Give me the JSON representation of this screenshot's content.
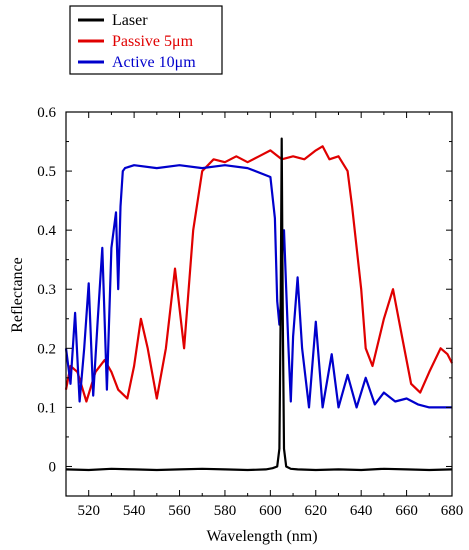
{
  "chart_data": {
    "type": "line",
    "title": "",
    "xlabel": "Wavelength (nm)",
    "ylabel": "Reflectance",
    "xlim": [
      510,
      680
    ],
    "ylim": [
      -0.05,
      0.6
    ],
    "xticks": [
      520,
      540,
      560,
      580,
      600,
      620,
      640,
      660,
      680
    ],
    "yticks": [
      0,
      0.1,
      0.2,
      0.3,
      0.4,
      0.5,
      0.6
    ],
    "ytick_labels": [
      "0",
      "0.1",
      "0.2",
      "0.3",
      "0.4",
      "0.5",
      "0.6"
    ],
    "grid": false,
    "legend_position": "top-left outside",
    "series": [
      {
        "name": "Laser",
        "color": "#000000",
        "x": [
          510,
          520,
          530,
          540,
          550,
          560,
          570,
          580,
          590,
          598,
          601,
          603,
          604,
          604.5,
          605,
          605.5,
          606,
          607,
          609,
          612,
          620,
          630,
          640,
          650,
          660,
          670,
          680
        ],
        "y": [
          -0.005,
          -0.006,
          -0.004,
          -0.005,
          -0.006,
          -0.005,
          -0.004,
          -0.005,
          -0.006,
          -0.005,
          -0.003,
          0.0,
          0.03,
          0.25,
          0.555,
          0.25,
          0.03,
          0.0,
          -0.004,
          -0.005,
          -0.006,
          -0.005,
          -0.006,
          -0.004,
          -0.005,
          -0.006,
          -0.005
        ]
      },
      {
        "name": "Passive 5μm",
        "color": "#e00000",
        "x": [
          510,
          512,
          515,
          519,
          523,
          527,
          530,
          533,
          537,
          540,
          543,
          546,
          550,
          554,
          558,
          562,
          566,
          570,
          575,
          580,
          585,
          590,
          595,
          600,
          605,
          610,
          615,
          620,
          623,
          626,
          630,
          634,
          636,
          640,
          642,
          645,
          650,
          654,
          658,
          662,
          666,
          670,
          675,
          678,
          680
        ],
        "y": [
          0.13,
          0.17,
          0.16,
          0.11,
          0.16,
          0.18,
          0.16,
          0.13,
          0.115,
          0.17,
          0.25,
          0.2,
          0.115,
          0.2,
          0.335,
          0.2,
          0.4,
          0.5,
          0.52,
          0.515,
          0.525,
          0.515,
          0.525,
          0.535,
          0.52,
          0.525,
          0.52,
          0.535,
          0.542,
          0.52,
          0.525,
          0.5,
          0.44,
          0.3,
          0.2,
          0.17,
          0.25,
          0.3,
          0.22,
          0.14,
          0.125,
          0.16,
          0.2,
          0.19,
          0.175
        ]
      },
      {
        "name": "Active 10μm",
        "color": "#0000cc",
        "x": [
          510,
          512,
          514,
          516,
          518,
          520,
          522,
          524,
          526,
          528,
          530,
          532,
          533,
          534,
          535,
          536,
          540,
          550,
          560,
          570,
          580,
          590,
          600,
          602,
          603,
          604,
          605,
          605.5,
          606,
          607,
          608,
          609,
          610,
          612,
          614,
          617,
          620,
          623,
          627,
          630,
          634,
          638,
          642,
          646,
          650,
          655,
          660,
          665,
          670,
          675,
          680
        ],
        "y": [
          0.2,
          0.14,
          0.26,
          0.11,
          0.2,
          0.31,
          0.12,
          0.25,
          0.37,
          0.13,
          0.37,
          0.43,
          0.3,
          0.44,
          0.5,
          0.505,
          0.51,
          0.505,
          0.51,
          0.505,
          0.51,
          0.505,
          0.49,
          0.42,
          0.28,
          0.24,
          0.3,
          0.39,
          0.4,
          0.3,
          0.2,
          0.11,
          0.22,
          0.32,
          0.2,
          0.1,
          0.245,
          0.1,
          0.19,
          0.1,
          0.155,
          0.1,
          0.15,
          0.105,
          0.125,
          0.11,
          0.115,
          0.105,
          0.1,
          0.1,
          0.1
        ]
      }
    ]
  }
}
